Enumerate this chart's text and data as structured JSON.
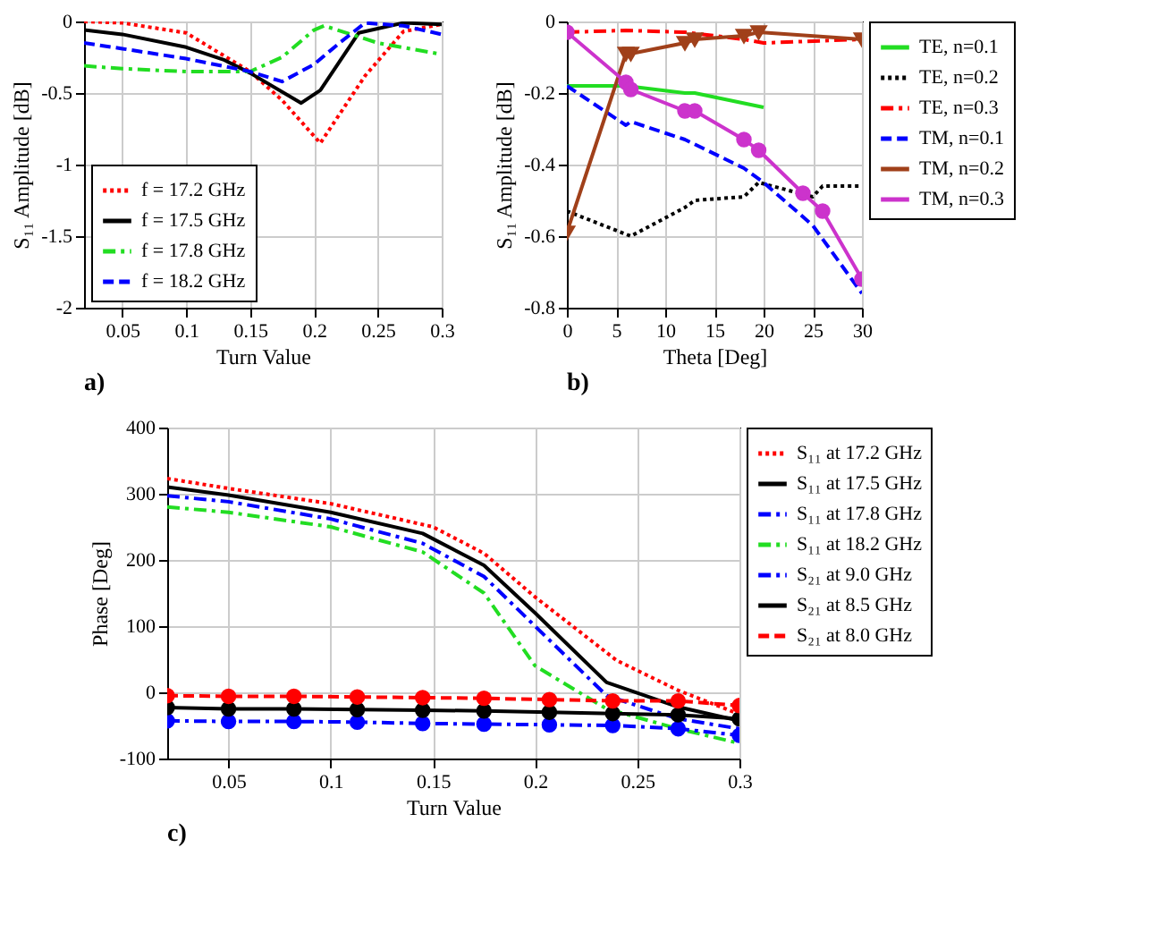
{
  "chart_data": [
    {
      "type": "line",
      "title": "a)",
      "xlabel": "Turn Value",
      "ylabel": "S₁₁ Amplitude [dB]",
      "xlim": [
        0.02,
        0.3
      ],
      "ylim": [
        -2,
        0
      ],
      "xticks": [
        0.05,
        0.1,
        0.15,
        0.2,
        0.25,
        0.3
      ],
      "yticks": [
        -2,
        -1.5,
        -1,
        -0.5,
        0
      ],
      "grid": true,
      "legend": "bottom left",
      "series": [
        {
          "name": "f = 17.2 GHz",
          "color": "#ff0000",
          "line_style": "dotted",
          "x": [
            0.02,
            0.05,
            0.1,
            0.15,
            0.175,
            0.205,
            0.24,
            0.27,
            0.3
          ],
          "values": [
            0,
            -0.01,
            -0.08,
            -0.35,
            -0.55,
            -0.85,
            -0.38,
            -0.07,
            -0.02
          ]
        },
        {
          "name": "f = 17.5 GHz",
          "color": "#000000",
          "line_style": "solid",
          "x": [
            0.02,
            0.05,
            0.1,
            0.13,
            0.15,
            0.19,
            0.205,
            0.235,
            0.27,
            0.3
          ],
          "values": [
            -0.06,
            -0.09,
            -0.18,
            -0.27,
            -0.36,
            -0.57,
            -0.48,
            -0.08,
            -0.01,
            -0.02
          ]
        },
        {
          "name": "f = 17.8 GHz",
          "color": "#22dd22",
          "line_style": "dashdot",
          "x": [
            0.02,
            0.05,
            0.1,
            0.15,
            0.175,
            0.2,
            0.208,
            0.25,
            0.3
          ],
          "values": [
            -0.31,
            -0.33,
            -0.35,
            -0.35,
            -0.25,
            -0.06,
            -0.03,
            -0.15,
            -0.23
          ]
        },
        {
          "name": "f = 18.2 GHz",
          "color": "#0000ff",
          "line_style": "dashed",
          "x": [
            0.02,
            0.05,
            0.1,
            0.15,
            0.175,
            0.2,
            0.22,
            0.24,
            0.27,
            0.3
          ],
          "values": [
            -0.15,
            -0.19,
            -0.26,
            -0.35,
            -0.42,
            -0.3,
            -0.15,
            -0.01,
            -0.03,
            -0.09
          ]
        }
      ]
    },
    {
      "type": "line",
      "title": "b)",
      "xlabel": "Theta [Deg]",
      "ylabel": "S₁₁ Amplitude [dB]",
      "xlim": [
        0,
        30
      ],
      "ylim": [
        -0.8,
        0
      ],
      "xticks": [
        0,
        5,
        10,
        15,
        20,
        25,
        30
      ],
      "yticks": [
        -0.8,
        -0.6,
        -0.4,
        -0.2,
        0
      ],
      "grid": true,
      "legend": "right",
      "series": [
        {
          "name": "TE, n=0.1",
          "color": "#22dd22",
          "line_style": "solid",
          "x": [
            0,
            6,
            12,
            13,
            20
          ],
          "values": [
            -0.18,
            -0.18,
            -0.2,
            -0.2,
            -0.24
          ]
        },
        {
          "name": "TE, n=0.2",
          "color": "#000000",
          "line_style": "dotted",
          "x": [
            0,
            6.5,
            12,
            13,
            18,
            19.5,
            25,
            26,
            30
          ],
          "values": [
            -0.53,
            -0.6,
            -0.52,
            -0.5,
            -0.49,
            -0.45,
            -0.49,
            -0.46,
            -0.46
          ]
        },
        {
          "name": "TE, n=0.3",
          "color": "#ff0000",
          "line_style": "dashdot",
          "x": [
            0,
            6,
            12,
            18,
            20,
            30
          ],
          "values": [
            -0.03,
            -0.025,
            -0.03,
            -0.05,
            -0.06,
            -0.05
          ]
        },
        {
          "name": "TM, n=0.1",
          "color": "#0000ff",
          "line_style": "dashed",
          "x": [
            0,
            6,
            6.5,
            12,
            18,
            20,
            25,
            30
          ],
          "values": [
            -0.18,
            -0.29,
            -0.28,
            -0.33,
            -0.41,
            -0.45,
            -0.57,
            -0.76
          ]
        },
        {
          "name": "TM, n=0.2",
          "color": "#a0401a",
          "line_style": "solid",
          "marker": "triangle",
          "x": [
            0,
            6,
            6.5,
            12,
            13,
            18,
            19.5,
            30
          ],
          "values": [
            -0.59,
            -0.09,
            -0.09,
            -0.06,
            -0.05,
            -0.04,
            -0.03,
            -0.05
          ]
        },
        {
          "name": "TM, n=0.3",
          "color": "#cc33cc",
          "line_style": "solid",
          "marker": "circle",
          "x": [
            0,
            6,
            6.5,
            12,
            13,
            18,
            19.5,
            24,
            26,
            30
          ],
          "values": [
            -0.03,
            -0.17,
            -0.19,
            -0.25,
            -0.25,
            -0.33,
            -0.36,
            -0.48,
            -0.53,
            -0.72
          ]
        }
      ]
    },
    {
      "type": "line",
      "title": "c)",
      "xlabel": "Turn Value",
      "ylabel": "Phase [Deg]",
      "xlim": [
        0.02,
        0.3
      ],
      "ylim": [
        -100,
        400
      ],
      "xticks": [
        0.05,
        0.1,
        0.15,
        0.2,
        0.25,
        0.3
      ],
      "yticks": [
        -100,
        0,
        100,
        200,
        300,
        400
      ],
      "grid": true,
      "legend": "right",
      "series": [
        {
          "name": "S₁₁ at 17.2 GHz",
          "color": "#ff0000",
          "line_style": "dotted",
          "x": [
            0.02,
            0.05,
            0.1,
            0.15,
            0.175,
            0.2,
            0.24,
            0.27,
            0.3
          ],
          "values": [
            323,
            308,
            285,
            250,
            210,
            144,
            48,
            3,
            -33
          ]
        },
        {
          "name": "S₁₁ at 17.5 GHz",
          "color": "#000000",
          "line_style": "solid",
          "x": [
            0.02,
            0.05,
            0.1,
            0.145,
            0.175,
            0.2,
            0.235,
            0.27,
            0.3
          ],
          "values": [
            310,
            298,
            272,
            240,
            192,
            120,
            15,
            -22,
            -43
          ]
        },
        {
          "name": "S₁₁ at 17.8 GHz",
          "color": "#0000ff",
          "line_style": "dashdot",
          "x": [
            0.02,
            0.05,
            0.1,
            0.145,
            0.175,
            0.2,
            0.235,
            0.27,
            0.3
          ],
          "values": [
            297,
            288,
            262,
            225,
            175,
            100,
            -5,
            -40,
            -55
          ]
        },
        {
          "name": "S₁₁ at 18.2 GHz",
          "color": "#22dd22",
          "line_style": "dashdot",
          "x": [
            0.02,
            0.05,
            0.1,
            0.145,
            0.175,
            0.2,
            0.235,
            0.27,
            0.3
          ],
          "values": [
            280,
            272,
            250,
            212,
            150,
            40,
            -25,
            -55,
            -77
          ]
        },
        {
          "name": "S₂₁ at 9.0 GHz",
          "color": "#0000ff",
          "line_style": "dashdot",
          "marker": "circle",
          "x": [
            0.02,
            0.05,
            0.082,
            0.113,
            0.145,
            0.175,
            0.207,
            0.238,
            0.27,
            0.3
          ],
          "values": [
            -43,
            -44,
            -44,
            -45,
            -47,
            -48,
            -49,
            -50,
            -55,
            -65
          ]
        },
        {
          "name": "S₂₁ at 8.5 GHz",
          "color": "#000000",
          "line_style": "solid",
          "marker": "circle",
          "x": [
            0.02,
            0.05,
            0.082,
            0.113,
            0.145,
            0.175,
            0.207,
            0.238,
            0.27,
            0.3
          ],
          "values": [
            -23,
            -25,
            -25,
            -26,
            -27,
            -28,
            -30,
            -32,
            -34,
            -40
          ]
        },
        {
          "name": "S₂₁ at 8.0 GHz",
          "color": "#ff0000",
          "line_style": "dashed",
          "marker": "circle",
          "x": [
            0.02,
            0.05,
            0.082,
            0.113,
            0.145,
            0.175,
            0.207,
            0.238,
            0.27,
            0.3
          ],
          "values": [
            -5,
            -6,
            -6,
            -7,
            -8,
            -9,
            -11,
            -13,
            -13,
            -20
          ]
        }
      ]
    }
  ]
}
